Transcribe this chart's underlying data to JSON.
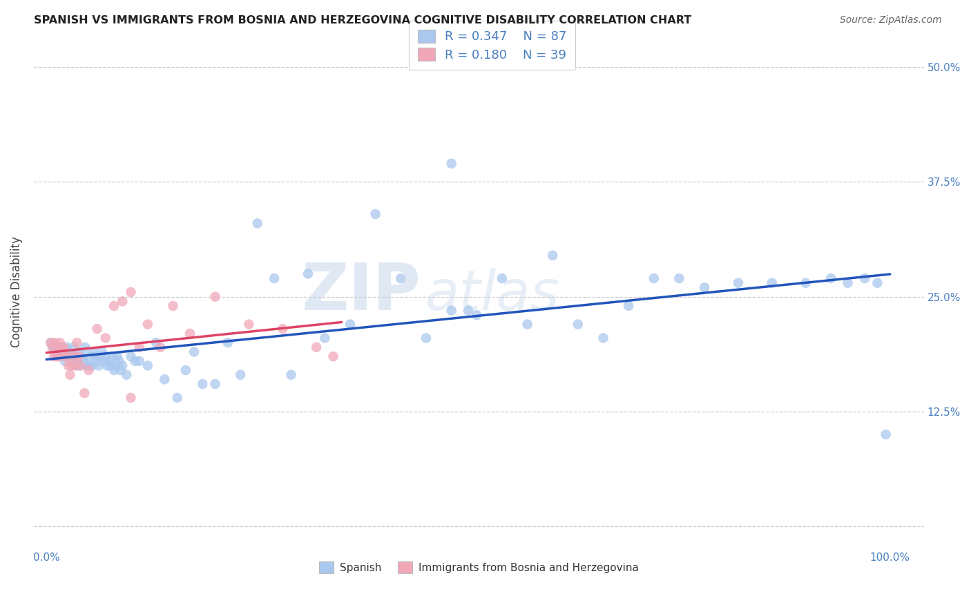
{
  "title": "SPANISH VS IMMIGRANTS FROM BOSNIA AND HERZEGOVINA COGNITIVE DISABILITY CORRELATION CHART",
  "source": "Source: ZipAtlas.com",
  "ylabel": "Cognitive Disability",
  "xtick_positions": [
    0.0,
    0.1,
    0.2,
    0.3,
    0.4,
    0.5,
    0.6,
    0.7,
    0.8,
    0.9,
    1.0
  ],
  "xticklabels": [
    "0.0%",
    "",
    "",
    "",
    "",
    "",
    "",
    "",
    "",
    "",
    "100.0%"
  ],
  "ytick_positions": [
    0.0,
    0.125,
    0.25,
    0.375,
    0.5
  ],
  "ytick_labels": [
    "",
    "12.5%",
    "25.0%",
    "37.5%",
    "50.0%"
  ],
  "legend1_R": "0.347",
  "legend1_N": "87",
  "legend2_R": "0.180",
  "legend2_N": "39",
  "blue_color": "#aac8ee",
  "pink_color": "#f0a8b8",
  "line_blue": "#2255bb",
  "line_pink": "#dd4466",
  "watermark_zip": "ZIP",
  "watermark_atlas": "atlas",
  "sp_x": [
    0.005,
    0.008,
    0.01,
    0.012,
    0.014,
    0.016,
    0.018,
    0.02,
    0.022,
    0.024,
    0.026,
    0.028,
    0.03,
    0.032,
    0.034,
    0.036,
    0.038,
    0.04,
    0.042,
    0.044,
    0.046,
    0.048,
    0.05,
    0.052,
    0.054,
    0.056,
    0.058,
    0.06,
    0.062,
    0.064,
    0.066,
    0.068,
    0.07,
    0.072,
    0.074,
    0.076,
    0.078,
    0.08,
    0.082,
    0.084,
    0.086,
    0.088,
    0.09,
    0.095,
    0.1,
    0.105,
    0.11,
    0.12,
    0.13,
    0.14,
    0.155,
    0.165,
    0.175,
    0.185,
    0.2,
    0.215,
    0.23,
    0.25,
    0.27,
    0.29,
    0.31,
    0.33,
    0.36,
    0.39,
    0.42,
    0.45,
    0.48,
    0.51,
    0.54,
    0.57,
    0.6,
    0.63,
    0.66,
    0.69,
    0.72,
    0.75,
    0.78,
    0.82,
    0.86,
    0.9,
    0.93,
    0.95,
    0.97,
    0.985,
    0.995,
    0.5,
    0.48
  ],
  "sp_y": [
    0.2,
    0.195,
    0.195,
    0.19,
    0.185,
    0.19,
    0.195,
    0.185,
    0.18,
    0.195,
    0.19,
    0.185,
    0.18,
    0.195,
    0.185,
    0.175,
    0.19,
    0.175,
    0.185,
    0.18,
    0.195,
    0.175,
    0.185,
    0.175,
    0.175,
    0.19,
    0.185,
    0.18,
    0.175,
    0.185,
    0.19,
    0.18,
    0.185,
    0.175,
    0.18,
    0.175,
    0.185,
    0.17,
    0.175,
    0.185,
    0.18,
    0.17,
    0.175,
    0.165,
    0.185,
    0.18,
    0.18,
    0.175,
    0.2,
    0.16,
    0.14,
    0.17,
    0.19,
    0.155,
    0.155,
    0.2,
    0.165,
    0.33,
    0.27,
    0.165,
    0.275,
    0.205,
    0.22,
    0.34,
    0.27,
    0.205,
    0.235,
    0.23,
    0.27,
    0.22,
    0.295,
    0.22,
    0.205,
    0.24,
    0.27,
    0.27,
    0.26,
    0.265,
    0.265,
    0.265,
    0.27,
    0.265,
    0.27,
    0.265,
    0.1,
    0.235,
    0.395
  ],
  "bo_x": [
    0.005,
    0.007,
    0.009,
    0.01,
    0.012,
    0.013,
    0.015,
    0.016,
    0.018,
    0.019,
    0.02,
    0.022,
    0.024,
    0.026,
    0.028,
    0.03,
    0.032,
    0.034,
    0.036,
    0.038,
    0.04,
    0.045,
    0.05,
    0.06,
    0.07,
    0.08,
    0.09,
    0.1,
    0.11,
    0.12,
    0.135,
    0.15,
    0.17,
    0.2,
    0.24,
    0.28,
    0.32,
    0.34,
    0.1
  ],
  "bo_y": [
    0.2,
    0.195,
    0.185,
    0.2,
    0.185,
    0.195,
    0.185,
    0.2,
    0.195,
    0.19,
    0.195,
    0.185,
    0.185,
    0.175,
    0.165,
    0.175,
    0.185,
    0.175,
    0.2,
    0.185,
    0.175,
    0.145,
    0.17,
    0.215,
    0.205,
    0.24,
    0.245,
    0.255,
    0.195,
    0.22,
    0.195,
    0.24,
    0.21,
    0.25,
    0.22,
    0.215,
    0.195,
    0.185,
    0.14
  ]
}
